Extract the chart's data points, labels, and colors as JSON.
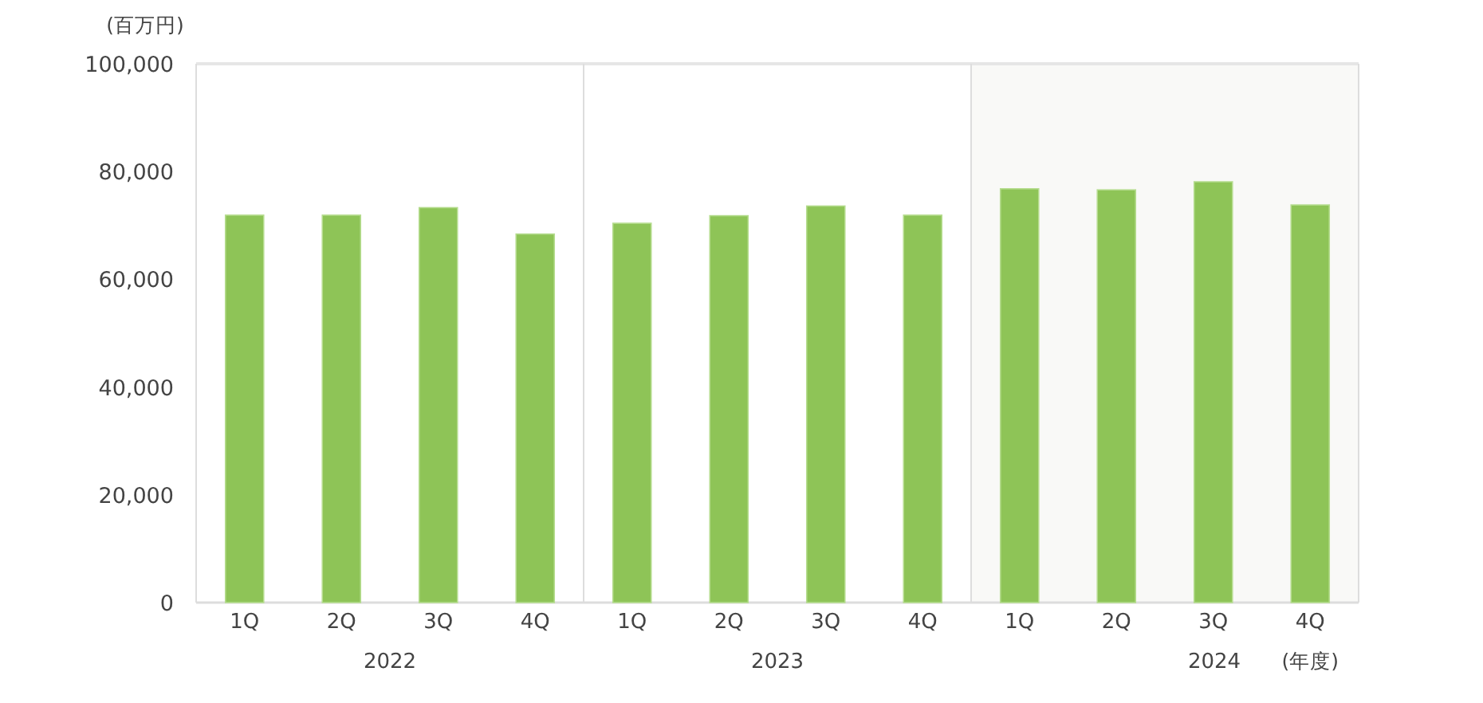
{
  "chart_data": [
    {
      "type": "bar",
      "ylabel": "(百万円)",
      "xlabel": "2022",
      "categories": [
        "1Q",
        "2Q",
        "3Q",
        "4Q"
      ],
      "values": [
        71900,
        71900,
        73300,
        68400
      ],
      "color": "#8ec457",
      "ylim": [
        0,
        100000
      ],
      "yticks": [
        0,
        {
          "value": 20000,
          "label": "20,000"
        },
        {
          "value": 40000,
          "label": "40,000"
        },
        {
          "value": 60000,
          "label": "60,000"
        },
        {
          "value": 80000,
          "label": "80,000"
        },
        {
          "value": 100000,
          "label": "100,000"
        }
      ]
    },
    {
      "type": "bar",
      "xlabel": "2023",
      "categories": [
        "1Q",
        "2Q",
        "3Q",
        "4Q"
      ],
      "values": [
        70400,
        71800,
        73600,
        71900
      ],
      "color": "#8ec457",
      "ylim": [
        0,
        100000
      ],
      "tick_labels": "x"
    },
    {
      "type": "bar",
      "xlabel": "2024",
      "categories": [
        "1Q",
        "2Q",
        "3Q",
        "4Q"
      ],
      "values": [
        76800,
        76600,
        78100,
        73800
      ],
      "color": "#8ec457",
      "ylim": [
        0,
        100000
      ],
      "tick_labels": "x",
      "bands": [
        {
          "axis": "x",
          "from": "1Q",
          "to": "4Q",
          "color": "#f9f9f7"
        }
      ],
      "annotations": [
        "(年度)"
      ]
    }
  ]
}
